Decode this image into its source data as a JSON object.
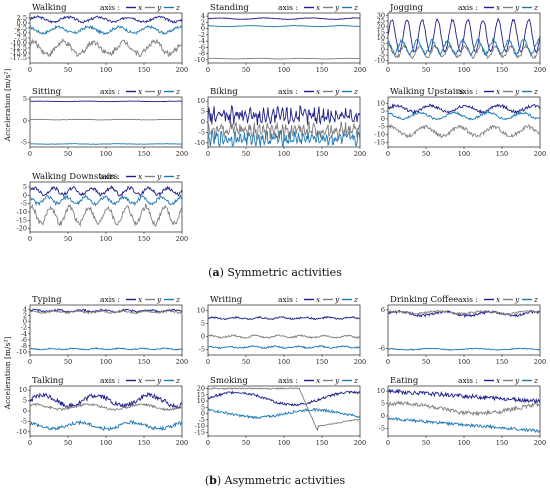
{
  "panel_a_caption": {
    "letter": "a",
    "text": "Symmetric activities"
  },
  "panel_b_caption": {
    "letter": "b",
    "text": "Asymmetric activities"
  },
  "ylabel": "Acceleration [m/s²]",
  "legend": {
    "prefix": "axis :",
    "items": [
      "x",
      "y",
      "z"
    ]
  },
  "colors": {
    "x": "#1f1f8a",
    "y": "#7f7f7f",
    "z": "#1f78b4"
  },
  "chart_data": [
    {
      "type": "line",
      "title": "Walking",
      "xlim": [
        0,
        200
      ],
      "ylim": [
        -20,
        5
      ],
      "xticks": [
        0,
        50,
        100,
        150,
        200
      ],
      "yticks": [
        2.5,
        0.0,
        -2.5,
        -5.0,
        -7.5,
        -10.0,
        -12.5,
        -15.0,
        -17.5
      ],
      "ytick_labels": [
        "2.5",
        "0.0",
        "-2.5",
        "-5.0",
        "-7.5",
        "-10.0",
        "-12.5",
        "-15.0",
        "-17.5"
      ],
      "series": [
        {
          "name": "x",
          "mean": 1.8,
          "amp": 1.2,
          "period": 40,
          "noise": 0.6
        },
        {
          "name": "y",
          "mean": -12.5,
          "amp": 3,
          "period": 40,
          "noise": 1.4
        },
        {
          "name": "z",
          "mean": -3.5,
          "amp": 1.5,
          "period": 40,
          "noise": 0.7
        }
      ]
    },
    {
      "type": "line",
      "title": "Standing",
      "xlim": [
        0,
        200
      ],
      "ylim": [
        -11,
        5
      ],
      "xticks": [
        0,
        50,
        100,
        150,
        200
      ],
      "yticks": [
        4,
        2,
        0,
        -2,
        -4,
        -6,
        -8,
        -10
      ],
      "ytick_labels": [
        "4",
        "2",
        "0",
        "-2",
        "-4",
        "-6",
        "-8",
        "-10"
      ],
      "series": [
        {
          "name": "x",
          "mean": 3.2,
          "amp": 0.2,
          "period": 60,
          "noise": 0.1
        },
        {
          "name": "y",
          "mean": -9.6,
          "amp": 0.1,
          "period": 60,
          "noise": 0.05
        },
        {
          "name": "z",
          "mean": 0.8,
          "amp": 0.15,
          "period": 60,
          "noise": 0.08
        }
      ]
    },
    {
      "type": "line",
      "title": "Jogging",
      "xlim": [
        0,
        200
      ],
      "ylim": [
        -12,
        32
      ],
      "xticks": [
        0,
        50,
        100,
        150,
        200
      ],
      "yticks": [
        30,
        25,
        20,
        15,
        10,
        5,
        0,
        -5,
        -10
      ],
      "ytick_labels": [
        "30",
        "25",
        "20",
        "15",
        "10",
        "5",
        "0",
        "-5",
        "-10"
      ],
      "series": [
        {
          "name": "x",
          "mean": 12,
          "amp": 14,
          "period": 20,
          "noise": 1
        },
        {
          "name": "y",
          "mean": -2,
          "amp": 5,
          "period": 20,
          "noise": 1.5
        },
        {
          "name": "z",
          "mean": 2,
          "amp": 6,
          "period": 20,
          "noise": 1.5
        }
      ]
    },
    {
      "type": "line",
      "title": "Sitting",
      "xlim": [
        0,
        200
      ],
      "ylim": [
        -6,
        5.5
      ],
      "xticks": [
        0,
        50,
        100,
        150,
        200
      ],
      "yticks": [
        5,
        0,
        -5
      ],
      "ytick_labels": [
        "5",
        "0",
        "-5"
      ],
      "series": [
        {
          "name": "x",
          "mean": 4.5,
          "amp": 0.05,
          "period": 60,
          "noise": 0.04
        },
        {
          "name": "y",
          "mean": 0.3,
          "amp": 0.05,
          "period": 60,
          "noise": 0.04
        },
        {
          "name": "z",
          "mean": -5.3,
          "amp": 0.05,
          "period": 60,
          "noise": 0.04
        }
      ]
    },
    {
      "type": "line",
      "title": "Biking",
      "xlim": [
        0,
        200
      ],
      "ylim": [
        -12,
        12
      ],
      "xticks": [
        0,
        50,
        100,
        150,
        200
      ],
      "yticks": [
        10,
        5,
        0,
        -5,
        -10
      ],
      "ytick_labels": [
        "10",
        "5",
        "0",
        "-5",
        "-10"
      ],
      "series": [
        {
          "name": "x",
          "mean": 3,
          "amp": 2,
          "period": 6,
          "noise": 3
        },
        {
          "name": "y",
          "mean": -4,
          "amp": 2,
          "period": 6,
          "noise": 3
        },
        {
          "name": "z",
          "mean": -8,
          "amp": 1.5,
          "period": 6,
          "noise": 2.5
        }
      ]
    },
    {
      "type": "line",
      "title": "Walking Upstairs",
      "xlim": [
        0,
        200
      ],
      "ylim": [
        -18,
        14
      ],
      "xticks": [
        0,
        50,
        100,
        150,
        200
      ],
      "yticks": [
        10,
        5,
        0,
        -5,
        -10,
        -15
      ],
      "ytick_labels": [
        "10",
        "5",
        "0",
        "-5",
        "-10",
        "-15"
      ],
      "series": [
        {
          "name": "x",
          "mean": 6.5,
          "amp": 2,
          "period": 45,
          "noise": 1
        },
        {
          "name": "y",
          "mean": -8,
          "amp": 3,
          "period": 45,
          "noise": 1.2
        },
        {
          "name": "z",
          "mean": 2,
          "amp": 2,
          "period": 45,
          "noise": 0.8
        }
      ]
    },
    {
      "type": "line",
      "title": "Walking Downstairs",
      "xlim": [
        0,
        200
      ],
      "ylim": [
        -22,
        8
      ],
      "xticks": [
        0,
        50,
        100,
        150,
        200
      ],
      "yticks": [
        5,
        0,
        -5,
        -10,
        -15,
        -20
      ],
      "ytick_labels": [
        "5",
        "0",
        "-5",
        "-10",
        "-15",
        "-20"
      ],
      "series": [
        {
          "name": "x",
          "mean": 2.5,
          "amp": 2,
          "period": 25,
          "noise": 1
        },
        {
          "name": "y",
          "mean": -12,
          "amp": 5,
          "period": 25,
          "noise": 1.5
        },
        {
          "name": "z",
          "mean": -3,
          "amp": 2,
          "period": 25,
          "noise": 1
        }
      ]
    },
    {
      "type": "line",
      "title": "Typing",
      "xlim": [
        0,
        200
      ],
      "ylim": [
        -11,
        5.5
      ],
      "xticks": [
        0,
        50,
        100,
        150,
        200
      ],
      "yticks": [
        4,
        2,
        0,
        -2,
        -4,
        -6,
        -8,
        -10
      ],
      "ytick_labels": [
        "4",
        "2",
        "0",
        "-2",
        "-4",
        "-6",
        "-8",
        "-10"
      ],
      "series": [
        {
          "name": "x",
          "mean": 3.6,
          "amp": 0.3,
          "period": 30,
          "noise": 0.3
        },
        {
          "name": "y",
          "mean": 3.2,
          "amp": 0.3,
          "period": 30,
          "noise": 0.3
        },
        {
          "name": "z",
          "mean": -9,
          "amp": 0.2,
          "period": 30,
          "noise": 0.2
        }
      ]
    },
    {
      "type": "line",
      "title": "Writing",
      "xlim": [
        0,
        200
      ],
      "ylim": [
        -7,
        12
      ],
      "xticks": [
        0,
        50,
        100,
        150,
        200
      ],
      "yticks": [
        10,
        5,
        0,
        -5
      ],
      "ytick_labels": [
        "10",
        "5",
        "0",
        "-5"
      ],
      "series": [
        {
          "name": "x",
          "mean": 7,
          "amp": 0.3,
          "period": 30,
          "noise": 0.3
        },
        {
          "name": "y",
          "mean": 0,
          "amp": 0.4,
          "period": 30,
          "noise": 0.3
        },
        {
          "name": "z",
          "mean": -4,
          "amp": 0.3,
          "period": 30,
          "noise": 0.3
        }
      ]
    },
    {
      "type": "line",
      "title": "Drinking Coffee",
      "xlim": [
        0,
        200
      ],
      "ylim": [
        -8,
        7.5
      ],
      "xticks": [
        0,
        50,
        100,
        150,
        200
      ],
      "yticks": [
        6,
        -6
      ],
      "ytick_labels": [
        "6",
        "-6"
      ],
      "series": [
        {
          "name": "x",
          "mean": 4.8,
          "amp": 0.6,
          "period": 60,
          "noise": 0.4
        },
        {
          "name": "y",
          "mean": 5.2,
          "amp": 0.4,
          "period": 60,
          "noise": 0.3
        },
        {
          "name": "z",
          "mean": -6.2,
          "amp": 0.2,
          "period": 60,
          "noise": 0.15
        }
      ]
    },
    {
      "type": "line",
      "title": "Talking",
      "xlim": [
        0,
        200
      ],
      "ylim": [
        -12,
        12
      ],
      "xticks": [
        0,
        50,
        100,
        150,
        200
      ],
      "yticks": [
        10,
        5,
        0,
        -5,
        -10
      ],
      "ytick_labels": [
        "10",
        "5",
        "0",
        "-5",
        "-10"
      ],
      "series": [
        {
          "name": "x",
          "mean": 5,
          "amp": 2.5,
          "period": 70,
          "noise": 1.2
        },
        {
          "name": "y",
          "mean": 2,
          "amp": 1.2,
          "period": 70,
          "noise": 0.6
        },
        {
          "name": "z",
          "mean": -7,
          "amp": 1.5,
          "period": 70,
          "noise": 0.8
        }
      ]
    },
    {
      "type": "line",
      "title": "Smoking",
      "xlim": [
        0,
        200
      ],
      "ylim": [
        -18,
        22
      ],
      "xticks": [
        0,
        50,
        100,
        150,
        200
      ],
      "yticks": [
        20,
        15,
        10,
        5,
        0,
        -5,
        -10,
        -15
      ],
      "ytick_labels": [
        "20",
        "15",
        "10",
        "5",
        "0",
        "-5",
        "-10",
        "-15"
      ],
      "series": [
        {
          "name": "x",
          "mean": 12,
          "amp": 5,
          "period": 150,
          "noise": 1
        },
        {
          "name": "y",
          "mean": 10,
          "amp": 10,
          "period": 150,
          "noise": 1
        },
        {
          "name": "z",
          "mean": 0,
          "amp": 3,
          "period": 150,
          "noise": 1
        }
      ]
    },
    {
      "type": "line",
      "title": "Eating",
      "xlim": [
        0,
        200
      ],
      "ylim": [
        -8,
        12
      ],
      "xticks": [
        0,
        50,
        100,
        150,
        200
      ],
      "yticks": [
        10,
        5,
        0,
        -5
      ],
      "ytick_labels": [
        "10",
        "5",
        "0",
        "-5"
      ],
      "series": [
        {
          "name": "x",
          "mean": 7,
          "amp": 2.5,
          "period": 200,
          "noise": 0.8
        },
        {
          "name": "y",
          "mean": 3,
          "amp": 2,
          "period": 200,
          "noise": 0.8
        },
        {
          "name": "z",
          "mean": -3,
          "amp": 2.5,
          "period": 200,
          "noise": 0.6
        }
      ]
    }
  ]
}
